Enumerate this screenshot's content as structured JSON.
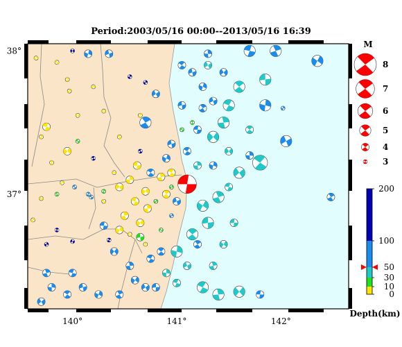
{
  "title": "Period:2003/05/16 00:00--2013/05/16 16:39",
  "map": {
    "lon_range": [
      139.57,
      142.65
    ],
    "lat_range": [
      36.2,
      38.05
    ],
    "lon_ticks": [
      {
        "value": 140,
        "label": "140°"
      },
      {
        "value": 141,
        "label": "141°"
      },
      {
        "value": 142,
        "label": "142°"
      }
    ],
    "lat_ticks": [
      {
        "value": 38,
        "label": "38°"
      },
      {
        "value": 37,
        "label": "37°"
      }
    ],
    "colors": {
      "land": "#fbe5c9",
      "sea": "#e2fdfd",
      "border": "#000000",
      "prefecture_line": "#888888"
    }
  },
  "magnitude_legend": {
    "title": "M",
    "items": [
      {
        "m": 8,
        "label": "8"
      },
      {
        "m": 7,
        "label": "7"
      },
      {
        "m": 6,
        "label": "6"
      },
      {
        "m": 5,
        "label": "5"
      },
      {
        "m": 4,
        "label": "4"
      },
      {
        "m": 3,
        "label": "3"
      }
    ]
  },
  "depth_colorbar": {
    "label": "Depth(km)",
    "ticks": [
      {
        "value": 200,
        "label": "200"
      },
      {
        "value": 100,
        "label": "100"
      },
      {
        "value": 50,
        "label": "50"
      },
      {
        "value": 30,
        "label": "30"
      },
      {
        "value": 10,
        "label": "10"
      },
      {
        "value": 0,
        "label": "0"
      }
    ],
    "marker_depth": 50,
    "bands": [
      {
        "from": 0,
        "to": 10,
        "color": "#ffe400"
      },
      {
        "from": 10,
        "to": 30,
        "color": "#20e020"
      },
      {
        "from": 30,
        "to": 50,
        "color": "#20c8c8"
      },
      {
        "from": 50,
        "to": 100,
        "color": "#1a8cf0"
      },
      {
        "from": 100,
        "to": 200,
        "color": "#0000b4"
      }
    ]
  },
  "events": [
    {
      "lon": 141.1,
      "lat": 37.07,
      "m": 7,
      "depth": 50,
      "color": "#ff0000"
    },
    {
      "lon": 140.7,
      "lat": 37.5,
      "m": 5,
      "depth": 10,
      "color": "#1a8cf0"
    },
    {
      "lon": 140.15,
      "lat": 37.98,
      "m": 4,
      "depth": 10,
      "color": "#1a8cf0"
    },
    {
      "lon": 140.35,
      "lat": 37.98,
      "m": 4,
      "depth": 10,
      "color": "#1a8cf0"
    },
    {
      "lon": 141.05,
      "lat": 37.9,
      "m": 4,
      "depth": 50,
      "color": "#1a8cf0"
    },
    {
      "lon": 141.3,
      "lat": 37.98,
      "m": 4,
      "depth": 50,
      "color": "#1a8cf0"
    },
    {
      "lon": 141.45,
      "lat": 37.85,
      "m": 4,
      "depth": 50,
      "color": "#1a8cf0"
    },
    {
      "lon": 141.7,
      "lat": 38.0,
      "m": 5,
      "depth": 50,
      "color": "#1a8cf0"
    },
    {
      "lon": 141.95,
      "lat": 38.0,
      "m": 5,
      "depth": 50,
      "color": "#1a8cf0"
    },
    {
      "lon": 142.35,
      "lat": 37.93,
      "m": 5,
      "depth": 50,
      "color": "#1a8cf0"
    },
    {
      "lon": 141.85,
      "lat": 37.8,
      "m": 5,
      "depth": 30,
      "color": "#20c8c8"
    },
    {
      "lon": 141.6,
      "lat": 37.75,
      "m": 5,
      "depth": 30,
      "color": "#20c8c8"
    },
    {
      "lon": 141.85,
      "lat": 37.62,
      "m": 5,
      "depth": 50,
      "color": "#1a8cf0"
    },
    {
      "lon": 142.05,
      "lat": 37.37,
      "m": 5,
      "depth": 50,
      "color": "#1a8cf0"
    },
    {
      "lon": 141.5,
      "lat": 37.62,
      "m": 5,
      "depth": 30,
      "color": "#20c8c8"
    },
    {
      "lon": 141.45,
      "lat": 37.5,
      "m": 5,
      "depth": 30,
      "color": "#20c8c8"
    },
    {
      "lon": 141.35,
      "lat": 37.4,
      "m": 5,
      "depth": 30,
      "color": "#20c8c8"
    },
    {
      "lon": 141.2,
      "lat": 37.45,
      "m": 4,
      "depth": 50,
      "color": "#1a8cf0"
    },
    {
      "lon": 141.25,
      "lat": 37.6,
      "m": 4,
      "depth": 50,
      "color": "#1a8cf0"
    },
    {
      "lon": 141.25,
      "lat": 37.75,
      "m": 4,
      "depth": 50,
      "color": "#1a8cf0"
    },
    {
      "lon": 141.15,
      "lat": 37.85,
      "m": 4,
      "depth": 50,
      "color": "#1a8cf0"
    },
    {
      "lon": 141.8,
      "lat": 37.22,
      "m": 6,
      "depth": 30,
      "color": "#20c8c8"
    },
    {
      "lon": 141.7,
      "lat": 37.27,
      "m": 4,
      "depth": 50,
      "color": "#1a8cf0"
    },
    {
      "lon": 141.6,
      "lat": 37.15,
      "m": 5,
      "depth": 30,
      "color": "#20c8c8"
    },
    {
      "lon": 141.5,
      "lat": 37.05,
      "m": 4,
      "depth": 30,
      "color": "#20c8c8"
    },
    {
      "lon": 141.4,
      "lat": 36.98,
      "m": 5,
      "depth": 30,
      "color": "#20c8c8"
    },
    {
      "lon": 141.25,
      "lat": 36.92,
      "m": 5,
      "depth": 30,
      "color": "#20c8c8"
    },
    {
      "lon": 141.3,
      "lat": 36.8,
      "m": 5,
      "depth": 30,
      "color": "#20c8c8"
    },
    {
      "lon": 141.15,
      "lat": 36.72,
      "m": 5,
      "depth": 30,
      "color": "#20c8c8"
    },
    {
      "lon": 141.0,
      "lat": 36.6,
      "m": 5,
      "depth": 30,
      "color": "#20c8c8"
    },
    {
      "lon": 141.1,
      "lat": 36.5,
      "m": 4,
      "depth": 30,
      "color": "#20c8c8"
    },
    {
      "lon": 141.25,
      "lat": 36.35,
      "m": 5,
      "depth": 30,
      "color": "#20c8c8"
    },
    {
      "lon": 141.4,
      "lat": 36.3,
      "m": 5,
      "depth": 30,
      "color": "#20c8c8"
    },
    {
      "lon": 141.6,
      "lat": 36.32,
      "m": 5,
      "depth": 30,
      "color": "#20c8c8"
    },
    {
      "lon": 141.8,
      "lat": 36.3,
      "m": 4,
      "depth": 50,
      "color": "#1a8cf0"
    },
    {
      "lon": 142.48,
      "lat": 36.98,
      "m": 4,
      "depth": 50,
      "color": "#1a8cf0"
    },
    {
      "lon": 140.9,
      "lat": 37.25,
      "m": 4,
      "depth": 50,
      "color": "#1a8cf0"
    },
    {
      "lon": 140.95,
      "lat": 37.35,
      "m": 4,
      "depth": 50,
      "color": "#1a8cf0"
    },
    {
      "lon": 140.75,
      "lat": 37.15,
      "m": 4,
      "depth": 50,
      "color": "#1a8cf0"
    },
    {
      "lon": 140.55,
      "lat": 37.1,
      "m": 4,
      "depth": 0,
      "color": "#ffe400"
    },
    {
      "lon": 140.45,
      "lat": 37.05,
      "m": 4,
      "depth": 0,
      "color": "#ffe400"
    },
    {
      "lon": 140.6,
      "lat": 36.95,
      "m": 4,
      "depth": 0,
      "color": "#ffe400"
    },
    {
      "lon": 140.5,
      "lat": 36.85,
      "m": 4,
      "depth": 0,
      "color": "#ffe400"
    },
    {
      "lon": 140.65,
      "lat": 36.8,
      "m": 4,
      "depth": 0,
      "color": "#ffe400"
    },
    {
      "lon": 140.55,
      "lat": 36.72,
      "m": 3,
      "depth": 0,
      "color": "#ffe400"
    },
    {
      "lon": 140.7,
      "lat": 36.65,
      "m": 3,
      "depth": 0,
      "color": "#ffe400"
    },
    {
      "lon": 140.8,
      "lat": 36.95,
      "m": 3,
      "depth": 10,
      "color": "#20e020"
    },
    {
      "lon": 140.85,
      "lat": 36.75,
      "m": 3,
      "depth": 10,
      "color": "#20e020"
    },
    {
      "lon": 140.75,
      "lat": 36.55,
      "m": 4,
      "depth": 50,
      "color": "#1a8cf0"
    },
    {
      "lon": 140.55,
      "lat": 36.5,
      "m": 4,
      "depth": 50,
      "color": "#1a8cf0"
    },
    {
      "lon": 140.4,
      "lat": 36.6,
      "m": 4,
      "depth": 50,
      "color": "#1a8cf0"
    },
    {
      "lon": 140.3,
      "lat": 36.78,
      "m": 4,
      "depth": 50,
      "color": "#1a8cf0"
    },
    {
      "lon": 140.45,
      "lat": 36.3,
      "m": 4,
      "depth": 50,
      "color": "#1a8cf0"
    },
    {
      "lon": 140.25,
      "lat": 36.3,
      "m": 4,
      "depth": 50,
      "color": "#1a8cf0"
    },
    {
      "lon": 140.1,
      "lat": 36.35,
      "m": 4,
      "depth": 50,
      "color": "#1a8cf0"
    },
    {
      "lon": 139.95,
      "lat": 36.3,
      "m": 4,
      "depth": 50,
      "color": "#1a8cf0"
    },
    {
      "lon": 139.8,
      "lat": 36.35,
      "m": 4,
      "depth": 50,
      "color": "#1a8cf0"
    },
    {
      "lon": 139.7,
      "lat": 36.25,
      "m": 4,
      "depth": 50,
      "color": "#1a8cf0"
    },
    {
      "lon": 140.0,
      "lat": 36.45,
      "m": 4,
      "depth": 50,
      "color": "#1a8cf0"
    },
    {
      "lon": 139.75,
      "lat": 36.45,
      "m": 4,
      "depth": 50,
      "color": "#1a8cf0"
    },
    {
      "lon": 140.6,
      "lat": 36.4,
      "m": 4,
      "depth": 50,
      "color": "#1a8cf0"
    },
    {
      "lon": 140.8,
      "lat": 36.35,
      "m": 4,
      "depth": 50,
      "color": "#1a8cf0"
    },
    {
      "lon": 139.85,
      "lat": 36.75,
      "m": 3,
      "depth": 200,
      "color": "#0000b4"
    },
    {
      "lon": 139.75,
      "lat": 36.65,
      "m": 3,
      "depth": 200,
      "color": "#0000b4"
    },
    {
      "lon": 140.0,
      "lat": 36.67,
      "m": 3,
      "depth": 200,
      "color": "#0000b4"
    },
    {
      "lon": 140.2,
      "lat": 37.25,
      "m": 3,
      "depth": 200,
      "color": "#0000b4"
    },
    {
      "lon": 140.55,
      "lat": 37.82,
      "m": 3,
      "depth": 200,
      "color": "#0000b4"
    },
    {
      "lon": 140.0,
      "lat": 38.0,
      "m": 3,
      "depth": 200,
      "color": "#0000b4"
    },
    {
      "lon": 140.02,
      "lat": 37.05,
      "m": 3,
      "depth": 50,
      "color": "#1a8cf0"
    },
    {
      "lon": 140.15,
      "lat": 37.0,
      "m": 3,
      "depth": 50,
      "color": "#1a8cf0"
    },
    {
      "lon": 139.65,
      "lat": 37.95,
      "m": 3,
      "depth": 0,
      "color": "#ffe400"
    },
    {
      "lon": 139.85,
      "lat": 37.92,
      "m": 3,
      "depth": 0,
      "color": "#ffe400"
    },
    {
      "lon": 139.95,
      "lat": 37.8,
      "m": 3,
      "depth": 0,
      "color": "#ffe400"
    },
    {
      "lon": 139.97,
      "lat": 37.72,
      "m": 3,
      "depth": 0,
      "color": "#ffe400"
    },
    {
      "lon": 140.05,
      "lat": 37.55,
      "m": 3,
      "depth": 0,
      "color": "#ffe400"
    },
    {
      "lon": 139.75,
      "lat": 37.47,
      "m": 4,
      "depth": 0,
      "color": "#ffe400"
    },
    {
      "lon": 139.7,
      "lat": 37.4,
      "m": 3,
      "depth": 0,
      "color": "#ffe400"
    },
    {
      "lon": 139.95,
      "lat": 37.3,
      "m": 4,
      "depth": 0,
      "color": "#ffe400"
    },
    {
      "lon": 140.05,
      "lat": 37.37,
      "m": 3,
      "depth": 10,
      "color": "#20e020"
    },
    {
      "lon": 139.8,
      "lat": 37.22,
      "m": 3,
      "depth": 0,
      "color": "#ffe400"
    },
    {
      "lon": 139.9,
      "lat": 37.08,
      "m": 3,
      "depth": 0,
      "color": "#ffe400"
    },
    {
      "lon": 139.7,
      "lat": 36.97,
      "m": 3,
      "depth": 0,
      "color": "#ffe400"
    },
    {
      "lon": 139.85,
      "lat": 37.0,
      "m": 3,
      "depth": 10,
      "color": "#20e020"
    },
    {
      "lon": 139.62,
      "lat": 36.82,
      "m": 3,
      "depth": 0,
      "color": "#ffe400"
    },
    {
      "lon": 140.3,
      "lat": 37.58,
      "m": 3,
      "depth": 0,
      "color": "#ffe400"
    },
    {
      "lon": 140.3,
      "lat": 36.95,
      "m": 3,
      "depth": 0,
      "color": "#ffe400"
    },
    {
      "lon": 140.3,
      "lat": 37.02,
      "m": 3,
      "depth": 10,
      "color": "#20e020"
    },
    {
      "lon": 140.95,
      "lat": 37.05,
      "m": 3,
      "depth": 10,
      "color": "#20e020"
    },
    {
      "lon": 141.05,
      "lat": 37.45,
      "m": 3,
      "depth": 10,
      "color": "#20e020"
    },
    {
      "lon": 141.15,
      "lat": 37.5,
      "m": 3,
      "depth": 10,
      "color": "#20e020"
    },
    {
      "lon": 140.7,
      "lat": 37.78,
      "m": 3,
      "depth": 100,
      "color": "#0000b4"
    },
    {
      "lon": 140.8,
      "lat": 37.7,
      "m": 4,
      "depth": 50,
      "color": "#1a8cf0"
    },
    {
      "lon": 140.65,
      "lat": 37.3,
      "m": 3,
      "depth": 200,
      "color": "#0000b4"
    },
    {
      "lon": 140.85,
      "lat": 37.12,
      "m": 4,
      "depth": 0,
      "color": "#ffe400"
    },
    {
      "lon": 140.7,
      "lat": 37.02,
      "m": 4,
      "depth": 0,
      "color": "#ffe400"
    },
    {
      "lon": 140.62,
      "lat": 37.2,
      "m": 4,
      "depth": 0,
      "color": "#ffe400"
    },
    {
      "lon": 140.9,
      "lat": 37.0,
      "m": 4,
      "depth": 0,
      "color": "#ffe400"
    },
    {
      "lon": 140.95,
      "lat": 36.85,
      "m": 3,
      "depth": 50,
      "color": "#1a8cf0"
    },
    {
      "lon": 141.0,
      "lat": 36.95,
      "m": 4,
      "depth": 50,
      "color": "#1a8cf0"
    },
    {
      "lon": 140.95,
      "lat": 37.15,
      "m": 4,
      "depth": 0,
      "color": "#ffe400"
    },
    {
      "lon": 140.72,
      "lat": 36.9,
      "m": 4,
      "depth": 0,
      "color": "#ffe400"
    },
    {
      "lon": 140.4,
      "lat": 37.15,
      "m": 3,
      "depth": 0,
      "color": "#ffe400"
    },
    {
      "lon": 140.18,
      "lat": 36.98,
      "m": 3,
      "depth": 50,
      "color": "#1a8cf0"
    },
    {
      "lon": 140.35,
      "lat": 36.68,
      "m": 3,
      "depth": 200,
      "color": "#0000b4"
    },
    {
      "lon": 140.45,
      "lat": 36.75,
      "m": 4,
      "depth": 0,
      "color": "#ffe400"
    },
    {
      "lon": 140.65,
      "lat": 36.7,
      "m": 4,
      "depth": 10,
      "color": "#20e020"
    },
    {
      "lon": 140.85,
      "lat": 36.6,
      "m": 4,
      "depth": 50,
      "color": "#1a8cf0"
    },
    {
      "lon": 140.9,
      "lat": 36.45,
      "m": 4,
      "depth": 30,
      "color": "#20c8c8"
    },
    {
      "lon": 140.7,
      "lat": 36.35,
      "m": 4,
      "depth": 50,
      "color": "#1a8cf0"
    },
    {
      "lon": 141.0,
      "lat": 36.38,
      "m": 4,
      "depth": 30,
      "color": "#20c8c8"
    },
    {
      "lon": 141.35,
      "lat": 36.5,
      "m": 4,
      "depth": 30,
      "color": "#20c8c8"
    },
    {
      "lon": 141.45,
      "lat": 36.65,
      "m": 4,
      "depth": 30,
      "color": "#20c8c8"
    },
    {
      "lon": 141.55,
      "lat": 36.8,
      "m": 4,
      "depth": 30,
      "color": "#20c8c8"
    },
    {
      "lon": 141.2,
      "lat": 36.65,
      "m": 4,
      "depth": 50,
      "color": "#1a8cf0"
    },
    {
      "lon": 141.35,
      "lat": 37.2,
      "m": 4,
      "depth": 50,
      "color": "#1a8cf0"
    },
    {
      "lon": 141.35,
      "lat": 37.65,
      "m": 4,
      "depth": 50,
      "color": "#1a8cf0"
    },
    {
      "lon": 141.1,
      "lat": 37.3,
      "m": 4,
      "depth": 50,
      "color": "#1a8cf0"
    },
    {
      "lon": 141.2,
      "lat": 37.2,
      "m": 4,
      "depth": 30,
      "color": "#20c8c8"
    },
    {
      "lon": 141.5,
      "lat": 37.3,
      "m": 4,
      "depth": 30,
      "color": "#20c8c8"
    },
    {
      "lon": 140.45,
      "lat": 37.4,
      "m": 3,
      "depth": 0,
      "color": "#ffe400"
    },
    {
      "lon": 140.65,
      "lat": 37.55,
      "m": 3,
      "depth": 0,
      "color": "#ffe400"
    },
    {
      "lon": 140.2,
      "lat": 37.75,
      "m": 3,
      "depth": 0,
      "color": "#ffe400"
    },
    {
      "lon": 141.05,
      "lat": 37.62,
      "m": 4,
      "depth": 50,
      "color": "#1a8cf0"
    },
    {
      "lon": 141.7,
      "lat": 37.45,
      "m": 4,
      "depth": 30,
      "color": "#20c8c8"
    },
    {
      "lon": 142.02,
      "lat": 37.6,
      "m": 3,
      "depth": 50,
      "color": "#1a8cf0"
    },
    {
      "lon": 141.3,
      "lat": 37.9,
      "m": 4,
      "depth": 30,
      "color": "#20c8c8"
    }
  ]
}
